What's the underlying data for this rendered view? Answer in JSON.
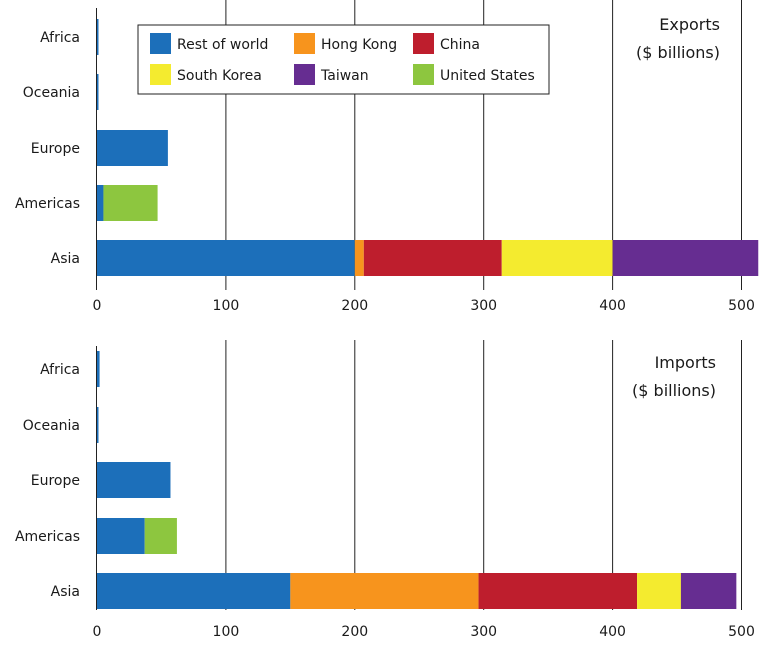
{
  "legend": {
    "entries": [
      {
        "label": "Rest of world",
        "color": "#1c6fba"
      },
      {
        "label": "Hong Kong",
        "color": "#f7941d"
      },
      {
        "label": "China",
        "color": "#be1e2d"
      },
      {
        "label": "South Korea",
        "color": "#f4eb2f"
      },
      {
        "label": "Taiwan",
        "color": "#662d91"
      },
      {
        "label": "United States",
        "color": "#8dc63f"
      }
    ]
  },
  "chart_data": [
    {
      "type": "bar",
      "orientation": "horizontal",
      "stacked": true,
      "title_lines": [
        "Exports",
        "($ billions)"
      ],
      "categories": [
        "Africa",
        "Oceania",
        "Europe",
        "Americas",
        "Asia"
      ],
      "series": [
        {
          "name": "Rest of world",
          "color": "#1c6fba",
          "values": [
            1,
            1,
            55,
            5,
            200
          ]
        },
        {
          "name": "Hong Kong",
          "color": "#f7941d",
          "values": [
            0,
            0,
            0,
            0,
            7
          ]
        },
        {
          "name": "China",
          "color": "#be1e2d",
          "values": [
            0,
            0,
            0,
            0,
            107
          ]
        },
        {
          "name": "South Korea",
          "color": "#f4eb2f",
          "values": [
            0,
            0,
            0,
            0,
            86
          ]
        },
        {
          "name": "Taiwan",
          "color": "#662d91",
          "values": [
            0,
            0,
            0,
            0,
            113
          ]
        },
        {
          "name": "United States",
          "color": "#8dc63f",
          "values": [
            0,
            0,
            0,
            42,
            0
          ]
        }
      ],
      "xlim": [
        0,
        512
      ],
      "xticks": [
        0,
        100,
        200,
        300,
        400,
        500
      ],
      "grid": true
    },
    {
      "type": "bar",
      "orientation": "horizontal",
      "stacked": true,
      "title_lines": [
        "Imports",
        "($ billions)"
      ],
      "categories": [
        "Africa",
        "Oceania",
        "Europe",
        "Americas",
        "Asia"
      ],
      "series": [
        {
          "name": "Rest of world",
          "color": "#1c6fba",
          "values": [
            2,
            1,
            57,
            37,
            150
          ]
        },
        {
          "name": "Hong Kong",
          "color": "#f7941d",
          "values": [
            0,
            0,
            0,
            0,
            146
          ]
        },
        {
          "name": "China",
          "color": "#be1e2d",
          "values": [
            0,
            0,
            0,
            0,
            123
          ]
        },
        {
          "name": "South Korea",
          "color": "#f4eb2f",
          "values": [
            0,
            0,
            0,
            0,
            34
          ]
        },
        {
          "name": "Taiwan",
          "color": "#662d91",
          "values": [
            0,
            0,
            0,
            0,
            43
          ]
        },
        {
          "name": "United States",
          "color": "#8dc63f",
          "values": [
            0,
            0,
            0,
            25,
            0
          ]
        }
      ],
      "xlim": [
        0,
        512
      ],
      "xticks": [
        0,
        100,
        200,
        300,
        400,
        500
      ],
      "grid": true
    }
  ]
}
